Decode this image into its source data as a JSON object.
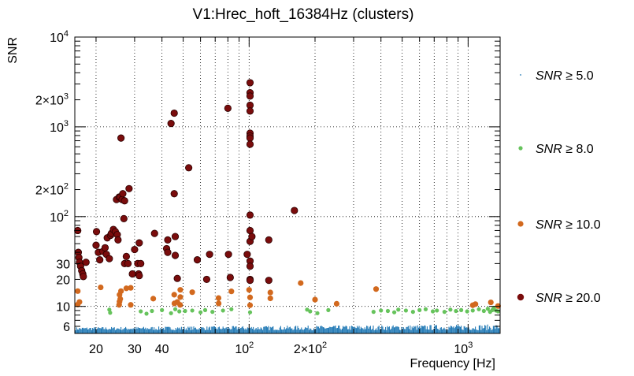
{
  "chart_data": {
    "type": "scatter",
    "title": "V1:Hrec_hoft_16384Hz (clusters)",
    "xlabel": "Frequency [Hz]",
    "ylabel": "SNR",
    "xscale": "log",
    "yscale": "log",
    "xlim": [
      16,
      1400
    ],
    "ylim": [
      5,
      10000
    ],
    "grid": true,
    "x_ticks": [
      {
        "v": 20,
        "label": "20"
      },
      {
        "v": 30,
        "label": "30"
      },
      {
        "v": 40,
        "label": "40"
      },
      {
        "v": 100,
        "label": "10",
        "sup": "2"
      },
      {
        "v": 200,
        "label": "2×10",
        "sup": "2"
      },
      {
        "v": 1000,
        "label": "10",
        "sup": "3"
      }
    ],
    "y_ticks": [
      {
        "v": 6,
        "label": "6"
      },
      {
        "v": 10,
        "label": "10"
      },
      {
        "v": 20,
        "label": "20"
      },
      {
        "v": 30,
        "label": "30"
      },
      {
        "v": 100,
        "label": "10",
        "sup": "2"
      },
      {
        "v": 200,
        "label": "2×10",
        "sup": "2"
      },
      {
        "v": 1000,
        "label": "10",
        "sup": "3"
      },
      {
        "v": 2000,
        "label": "2×10",
        "sup": "3"
      },
      {
        "v": 10000,
        "label": "10",
        "sup": "4"
      }
    ],
    "legend": {
      "placement": "right",
      "entries": [
        {
          "series": 0,
          "prefix": "SNR",
          "text": " ≥ 5.0"
        },
        {
          "series": 1,
          "prefix": "SNR",
          "text": " ≥ 8.0"
        },
        {
          "series": 2,
          "prefix": "SNR",
          "text": " ≥ 10.0"
        },
        {
          "series": 3,
          "prefix": "SNR",
          "text": " ≥ 20.0"
        }
      ]
    },
    "series": [
      {
        "name": "SNR ≥ 5.0",
        "color": "#1f78b4",
        "marker": "dense-dots",
        "x_range": [
          16,
          1400
        ],
        "y_min": 5,
        "y_max": 6.3
      },
      {
        "name": "SNR ≥ 8.0",
        "color": "#66c35c",
        "points": [
          [
            23,
            9.2
          ],
          [
            23.2,
            8.5
          ],
          [
            32,
            8.8
          ],
          [
            34,
            8.3
          ],
          [
            36,
            8.9
          ],
          [
            40,
            9.1
          ],
          [
            44,
            8.4
          ],
          [
            46,
            9.3
          ],
          [
            48,
            8.8
          ],
          [
            51,
            8.9
          ],
          [
            55,
            9.0
          ],
          [
            60,
            8.6
          ],
          [
            63,
            9.1
          ],
          [
            68,
            8.7
          ],
          [
            76,
            9.0
          ],
          [
            83,
            9.3
          ],
          [
            101,
            8.6
          ],
          [
            184,
            9.2
          ],
          [
            190,
            8.8
          ],
          [
            205,
            8.4
          ],
          [
            230,
            9.1
          ],
          [
            370,
            8.7
          ],
          [
            400,
            9.0
          ],
          [
            430,
            8.9
          ],
          [
            460,
            8.6
          ],
          [
            480,
            9.2
          ],
          [
            520,
            9.0
          ],
          [
            560,
            8.7
          ],
          [
            600,
            9.1
          ],
          [
            640,
            9.3
          ],
          [
            690,
            8.8
          ],
          [
            720,
            9.0
          ],
          [
            780,
            8.7
          ],
          [
            830,
            9.2
          ],
          [
            880,
            8.9
          ],
          [
            930,
            9.1
          ],
          [
            990,
            8.8
          ],
          [
            1050,
            9.0
          ],
          [
            1120,
            9.3
          ],
          [
            1180,
            8.9
          ],
          [
            1230,
            9.4
          ],
          [
            1260,
            8.7
          ],
          [
            1290,
            9.1
          ],
          [
            1310,
            9.6
          ],
          [
            1340,
            9.0
          ],
          [
            1370,
            8.8
          ]
        ]
      },
      {
        "name": "SNR ≥ 10.0",
        "color": "#d2691e",
        "points": [
          [
            16.5,
            10.5
          ],
          [
            16.8,
            11.2
          ],
          [
            16.5,
            14.8
          ],
          [
            21,
            16.3
          ],
          [
            25.5,
            10.4
          ],
          [
            25.6,
            11.3
          ],
          [
            25.8,
            12.1
          ],
          [
            25.6,
            13.5
          ],
          [
            26,
            14.8
          ],
          [
            27.5,
            15.9
          ],
          [
            28.8,
            16.1
          ],
          [
            28.8,
            10.4
          ],
          [
            36.5,
            12.2
          ],
          [
            45.5,
            13.5
          ],
          [
            45.6,
            10.8
          ],
          [
            47,
            11.2
          ],
          [
            48.4,
            10.4
          ],
          [
            48.5,
            12.7
          ],
          [
            48.5,
            15.3
          ],
          [
            55,
            14.4
          ],
          [
            72.5,
            12.4
          ],
          [
            72.6,
            10.8
          ],
          [
            83,
            14.7
          ],
          [
            100,
            15.3
          ],
          [
            101,
            12.6
          ],
          [
            101,
            10.3
          ],
          [
            125,
            12.3
          ],
          [
            125,
            14.3
          ],
          [
            172,
            18.2
          ],
          [
            200,
            11.9
          ],
          [
            251,
            10.7
          ],
          [
            380,
            15.6
          ],
          [
            1050,
            10.3
          ],
          [
            1080,
            10.6
          ],
          [
            1270,
            11.1
          ],
          [
            1370,
            10.1
          ]
        ]
      },
      {
        "name": "SNR ≥ 20.0",
        "color": "#7a0c0c",
        "points": [
          [
            16.5,
            70
          ],
          [
            16.6,
            40
          ],
          [
            16.7,
            35
          ],
          [
            16.8,
            31
          ],
          [
            17.0,
            28
          ],
          [
            17.2,
            25
          ],
          [
            17.4,
            23
          ],
          [
            17.5,
            21.5
          ],
          [
            18.0,
            31
          ],
          [
            20,
            48
          ],
          [
            20.1,
            68
          ],
          [
            20.5,
            40
          ],
          [
            20.8,
            33
          ],
          [
            21.5,
            41
          ],
          [
            22,
            45
          ],
          [
            22.3,
            38
          ],
          [
            22.5,
            58
          ],
          [
            23,
            34
          ],
          [
            23.3,
            62
          ],
          [
            23.5,
            65
          ],
          [
            24,
            72
          ],
          [
            24.5,
            68
          ],
          [
            24.8,
            155
          ],
          [
            25,
            63
          ],
          [
            25.2,
            55
          ],
          [
            25.5,
            165
          ],
          [
            25.8,
            165
          ],
          [
            26,
            750
          ],
          [
            26.3,
            155
          ],
          [
            26.5,
            180
          ],
          [
            26.8,
            95
          ],
          [
            27,
            150
          ],
          [
            27,
            30
          ],
          [
            27.5,
            36
          ],
          [
            28,
            30
          ],
          [
            28.3,
            205
          ],
          [
            29.3,
            23
          ],
          [
            30,
            43
          ],
          [
            31,
            30
          ],
          [
            31.3,
            23
          ],
          [
            31.5,
            22
          ],
          [
            31.5,
            51
          ],
          [
            32,
            30
          ],
          [
            37,
            65
          ],
          [
            42,
            44
          ],
          [
            42.5,
            40
          ],
          [
            42.5,
            55
          ],
          [
            44,
            1090
          ],
          [
            45.5,
            1420
          ],
          [
            45.5,
            180
          ],
          [
            46,
            60
          ],
          [
            46,
            37
          ],
          [
            47,
            20.5
          ],
          [
            53,
            350
          ],
          [
            58,
            33
          ],
          [
            64,
            20
          ],
          [
            66,
            38
          ],
          [
            80,
            1610
          ],
          [
            80.5,
            38
          ],
          [
            82,
            21
          ],
          [
            98,
            38
          ],
          [
            101,
            3100
          ],
          [
            101,
            2400
          ],
          [
            101,
            2200
          ],
          [
            101,
            1740
          ],
          [
            101,
            1500
          ],
          [
            101,
            850
          ],
          [
            101,
            790
          ],
          [
            101,
            750
          ],
          [
            101,
            640
          ],
          [
            101,
            104
          ],
          [
            101,
            70
          ],
          [
            101,
            53
          ],
          [
            101,
            32
          ],
          [
            101,
            28
          ],
          [
            101,
            20
          ],
          [
            101,
            19.5
          ],
          [
            103,
            60
          ],
          [
            123,
            55
          ],
          [
            123,
            19.5
          ],
          [
            161,
            117
          ]
        ]
      }
    ]
  }
}
